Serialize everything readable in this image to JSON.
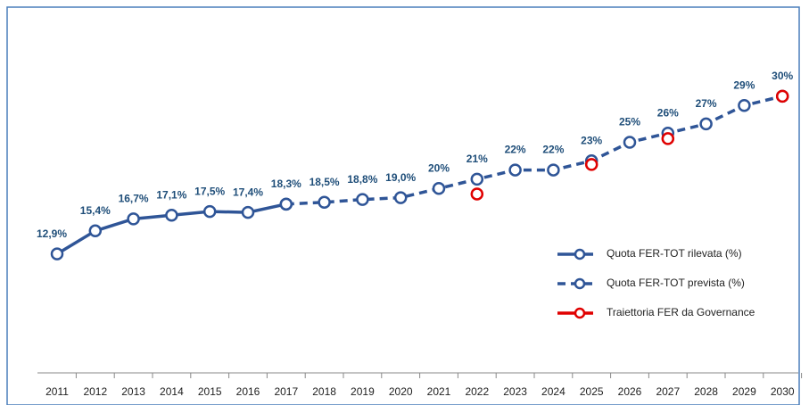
{
  "chart_data": {
    "type": "line",
    "categories": [
      "2011",
      "2012",
      "2013",
      "2014",
      "2015",
      "2016",
      "2017",
      "2018",
      "2019",
      "2020",
      "2021",
      "2022",
      "2023",
      "2024",
      "2025",
      "2026",
      "2027",
      "2028",
      "2029",
      "2030"
    ],
    "ylim": [
      0,
      38.5
    ],
    "series": [
      {
        "name": "Quota FER-TOT rilevata (%)",
        "color": "#2f5597",
        "dash": "solid",
        "connect": true,
        "values": [
          12.9,
          15.4,
          16.7,
          17.1,
          17.5,
          17.4,
          18.3,
          null,
          null,
          null,
          null,
          null,
          null,
          null,
          null,
          null,
          null,
          null,
          null,
          null
        ],
        "value_labels": [
          "12,9%",
          "15,4%",
          "16,7%",
          "17,1%",
          "17,5%",
          "17,4%",
          "18,3%",
          null,
          null,
          null,
          null,
          null,
          null,
          null,
          null,
          null,
          null,
          null,
          null,
          null
        ]
      },
      {
        "name": "Quota FER-TOT prevista (%)",
        "color": "#2f5597",
        "dash": "dashed",
        "connect": true,
        "values": [
          null,
          null,
          null,
          null,
          null,
          null,
          18.3,
          18.5,
          18.8,
          19.0,
          20,
          21,
          22,
          22,
          23,
          25,
          26,
          27,
          29,
          30
        ],
        "value_labels": [
          null,
          null,
          null,
          null,
          null,
          null,
          null,
          "18,5%",
          "18,8%",
          "19,0%",
          "20%",
          "21%",
          "22%",
          "22%",
          "23%",
          "25%",
          "26%",
          "27%",
          "29%",
          "30%"
        ]
      },
      {
        "name": "Traiettoria FER da Governance",
        "color": "#e00000",
        "dash": "solid",
        "connect": false,
        "values": [
          null,
          null,
          null,
          null,
          null,
          null,
          null,
          null,
          null,
          null,
          null,
          19.4,
          null,
          null,
          22.6,
          null,
          25.4,
          null,
          null,
          30
        ]
      }
    ]
  }
}
